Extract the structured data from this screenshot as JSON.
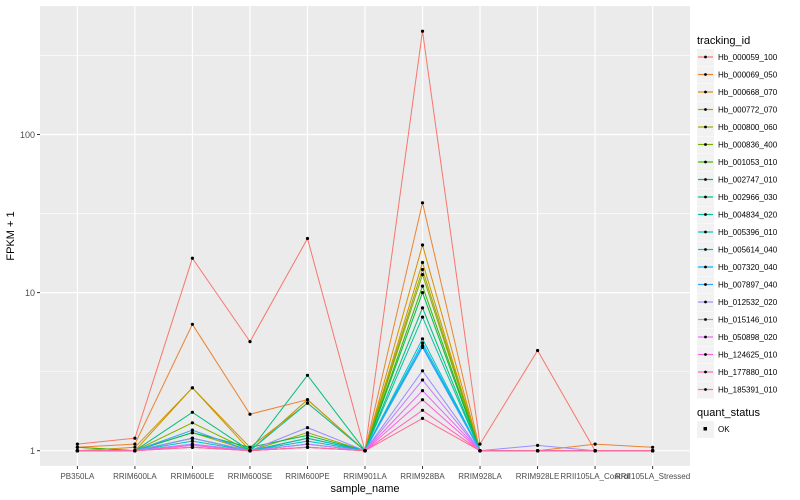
{
  "chart_data": {
    "type": "line",
    "title": "",
    "xlabel": "sample_name",
    "ylabel": "FPKM + 1",
    "y_scale": "log10",
    "ylim": [
      0.8,
      650
    ],
    "y_ticks": [
      {
        "value": 1,
        "label": "1"
      },
      {
        "value": 10,
        "label": "10"
      },
      {
        "value": 100,
        "label": "100"
      }
    ],
    "grid": true,
    "legend_position": "right",
    "categories": [
      "PB350LA",
      "RRIM600LA",
      "RRIM600LE",
      "RRIM600SE",
      "RRIM600PE",
      "RRIM901LA",
      "RRIM928BA",
      "RRIM928LA",
      "RRIM928LE",
      "RRII105LA_Control",
      "RRII105LA_Stressed"
    ],
    "series": [
      {
        "name": "Hb_000059_100",
        "color": "#F8766D",
        "values": [
          1.1,
          1.2,
          16.5,
          4.9,
          22,
          1.0,
          450,
          1.1,
          4.3,
          1.0,
          1.0
        ]
      },
      {
        "name": "Hb_000069_050",
        "color": "#EA8331",
        "values": [
          1.05,
          1.1,
          6.3,
          1.7,
          2.1,
          1.0,
          37,
          1.0,
          1.0,
          1.1,
          1.05
        ]
      },
      {
        "name": "Hb_000668_070",
        "color": "#D89000",
        "values": [
          1.0,
          1.05,
          2.5,
          1.05,
          2.0,
          1.0,
          20,
          1.0,
          1.0,
          1.0,
          1.0
        ]
      },
      {
        "name": "Hb_000772_070",
        "color": "#C09B00",
        "values": [
          1.0,
          1.0,
          2.5,
          1.0,
          2.1,
          1.0,
          15.5,
          1.0,
          1.0,
          1.0,
          1.0
        ]
      },
      {
        "name": "Hb_000800_060",
        "color": "#A3A500",
        "values": [
          1.05,
          1.0,
          1.3,
          1.0,
          1.3,
          1.0,
          14,
          1.0,
          1.0,
          1.0,
          1.0
        ]
      },
      {
        "name": "Hb_000836_400",
        "color": "#7CAE00",
        "values": [
          1.0,
          1.0,
          1.5,
          1.0,
          1.2,
          1.0,
          13,
          1.0,
          1.0,
          1.0,
          1.0
        ]
      },
      {
        "name": "Hb_001053_010",
        "color": "#39B600",
        "values": [
          1.05,
          1.0,
          1.2,
          1.0,
          1.2,
          1.0,
          11,
          1.0,
          1.0,
          1.0,
          1.0
        ]
      },
      {
        "name": "Hb_002747_010",
        "color": "#00BB4E",
        "values": [
          1.0,
          1.0,
          1.3,
          1.05,
          1.25,
          1.0,
          10,
          1.0,
          1.0,
          1.0,
          1.0
        ]
      },
      {
        "name": "Hb_002966_030",
        "color": "#00BF7D",
        "values": [
          1.0,
          1.0,
          1.75,
          1.0,
          3.0,
          1.0,
          8,
          1.0,
          1.0,
          1.0,
          1.0
        ]
      },
      {
        "name": "Hb_004834_020",
        "color": "#00C1A3",
        "values": [
          1.0,
          1.0,
          1.2,
          1.0,
          2.0,
          1.0,
          7,
          1.0,
          1.0,
          1.0,
          1.0
        ]
      },
      {
        "name": "Hb_005396_010",
        "color": "#00BFC4",
        "values": [
          1.0,
          1.0,
          1.15,
          1.0,
          1.15,
          1.0,
          5.1,
          1.0,
          1.0,
          1.0,
          1.0
        ]
      },
      {
        "name": "Hb_005614_040",
        "color": "#00BAE0",
        "values": [
          1.0,
          1.0,
          1.2,
          1.0,
          1.2,
          1.0,
          4.8,
          1.0,
          1.0,
          1.0,
          1.0
        ]
      },
      {
        "name": "Hb_007320_040",
        "color": "#00B0F6",
        "values": [
          1.0,
          1.0,
          1.1,
          1.0,
          1.1,
          1.0,
          4.6,
          1.0,
          1.0,
          1.0,
          1.0
        ]
      },
      {
        "name": "Hb_007897_040",
        "color": "#35A2FF",
        "values": [
          1.0,
          1.0,
          1.35,
          1.0,
          1.1,
          1.0,
          4.5,
          1.0,
          1.0,
          1.0,
          1.0
        ]
      },
      {
        "name": "Hb_012532_020",
        "color": "#9590FF",
        "values": [
          1.0,
          1.0,
          1.2,
          1.0,
          1.4,
          1.0,
          3.2,
          1.0,
          1.08,
          1.0,
          1.0
        ]
      },
      {
        "name": "Hb_015146_010",
        "color": "#C77CFF",
        "values": [
          1.0,
          1.0,
          1.1,
          1.0,
          1.1,
          1.0,
          2.8,
          1.0,
          1.0,
          1.0,
          1.0
        ]
      },
      {
        "name": "Hb_050898_020",
        "color": "#E76BF3",
        "values": [
          1.0,
          1.0,
          1.05,
          1.0,
          1.05,
          1.0,
          2.4,
          1.0,
          1.0,
          1.0,
          1.0
        ]
      },
      {
        "name": "Hb_124625_010",
        "color": "#FA62DB",
        "values": [
          1.0,
          1.0,
          1.08,
          1.0,
          1.05,
          1.0,
          2.1,
          1.0,
          1.0,
          1.0,
          1.0
        ]
      },
      {
        "name": "Hb_177880_010",
        "color": "#FF62BC",
        "values": [
          1.0,
          1.0,
          1.05,
          1.0,
          1.05,
          1.0,
          1.8,
          1.0,
          1.0,
          1.0,
          1.0
        ]
      },
      {
        "name": "Hb_185391_010",
        "color": "#FF6C91",
        "values": [
          1.0,
          1.0,
          1.05,
          1.0,
          1.05,
          1.0,
          1.6,
          1.0,
          1.0,
          1.0,
          1.0
        ]
      }
    ],
    "legend": {
      "title": "tracking_id"
    },
    "legend2": {
      "title": "quant_status",
      "items": [
        "OK"
      ]
    },
    "colors": {
      "panel_bg": "#EBEBEB",
      "grid": "#FFFFFF",
      "point": "#000000"
    }
  }
}
